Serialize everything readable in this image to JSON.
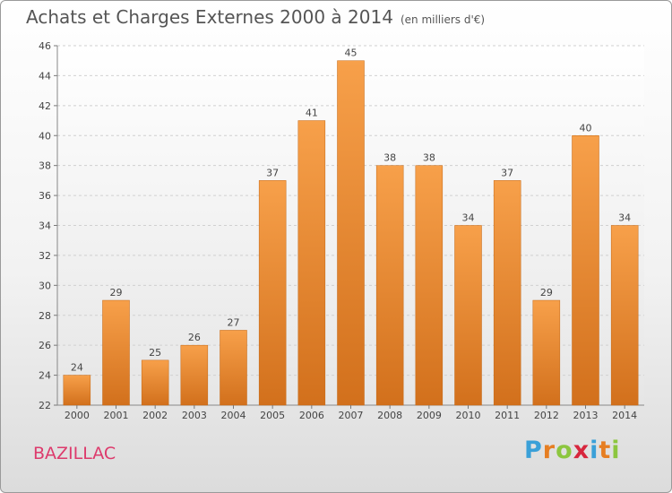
{
  "header": {
    "title": "Achats et Charges Externes 2000 à 2014",
    "subtitle": "(en milliers d'€)"
  },
  "footer": {
    "town": "BAZILLAC"
  },
  "logo": {
    "letters": [
      "P",
      "r",
      "o",
      "x",
      "i",
      "t",
      "i"
    ],
    "colors": [
      "#3aa0d8",
      "#e67e22",
      "#8cc63f",
      "#d7263d",
      "#3aa0d8",
      "#e67e22",
      "#8cc63f"
    ]
  },
  "chart_data": {
    "type": "bar",
    "title": "Achats et Charges Externes 2000 à 2014",
    "subtitle": "(en milliers d'€)",
    "categories": [
      "2000",
      "2001",
      "2002",
      "2003",
      "2004",
      "2005",
      "2006",
      "2007",
      "2008",
      "2009",
      "2010",
      "2011",
      "2012",
      "2013",
      "2014"
    ],
    "values": [
      24,
      29,
      25,
      26,
      27,
      37,
      41,
      45,
      38,
      38,
      34,
      37,
      29,
      40,
      34
    ],
    "ylim": [
      22,
      46
    ],
    "yticks": [
      22,
      24,
      26,
      28,
      30,
      32,
      34,
      36,
      38,
      40,
      42,
      44,
      46
    ],
    "grid": true,
    "bar_color": "#ed8a2b",
    "xlabel": "",
    "ylabel": ""
  }
}
